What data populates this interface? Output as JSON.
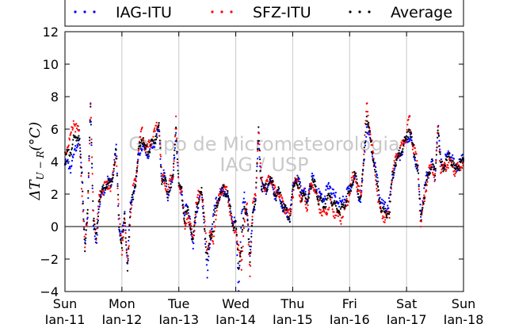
{
  "chart_data": {
    "type": "scatter",
    "title": "",
    "xlabel": "",
    "ylabel": "ΔT",
    "ylabel_subscript": "U − R",
    "ylabel_unit": "(°C)",
    "ylim": [
      -4,
      12
    ],
    "yticks": [
      -4,
      -2,
      0,
      2,
      4,
      6,
      8,
      10,
      12
    ],
    "ytick_labels": [
      "−4",
      "−2",
      "0",
      "2",
      "4",
      "6",
      "8",
      "10",
      "12"
    ],
    "xlim": [
      0,
      7
    ],
    "x_unit": "days since Sun Jan-11",
    "xticks": [
      {
        "x": 0,
        "day": "Sun",
        "date": "Jan-11"
      },
      {
        "x": 1,
        "day": "Mon",
        "date": "Jan-12"
      },
      {
        "x": 2,
        "day": "Tue",
        "date": "Jan-13"
      },
      {
        "x": 3,
        "day": "Wed",
        "date": "Jan-14"
      },
      {
        "x": 4,
        "day": "Thu",
        "date": "Jan-15"
      },
      {
        "x": 5,
        "day": "Fri",
        "date": "Jan-16"
      },
      {
        "x": 6,
        "day": "Sat",
        "date": "Jan-17"
      },
      {
        "x": 7,
        "day": "Sun",
        "date": "Jan-18"
      }
    ],
    "grid": "vertical",
    "zero_line": true,
    "legend_position": "top (above plot)",
    "watermark": [
      "Grupo de Micrometeorologia",
      "IAG / USP"
    ],
    "series": [
      {
        "name": "IAG-ITU",
        "color": "#0000ff",
        "marker": "dot",
        "x": [
          0,
          0.05,
          0.1,
          0.15,
          0.2,
          0.25,
          0.3,
          0.35,
          0.4,
          0.45,
          0.5,
          0.55,
          0.6,
          0.65,
          0.7,
          0.75,
          0.8,
          0.85,
          0.9,
          0.95,
          1,
          1.05,
          1.1,
          1.15,
          1.2,
          1.25,
          1.3,
          1.35,
          1.4,
          1.45,
          1.5,
          1.55,
          1.6,
          1.65,
          1.7,
          1.75,
          1.8,
          1.85,
          1.9,
          1.95,
          2,
          2.05,
          2.1,
          2.15,
          2.2,
          2.25,
          2.3,
          2.35,
          2.4,
          2.45,
          2.5,
          2.55,
          2.6,
          2.65,
          2.7,
          2.75,
          2.8,
          2.85,
          2.9,
          2.95,
          3,
          3.05,
          3.1,
          3.15,
          3.2,
          3.25,
          3.3,
          3.35,
          3.4,
          3.45,
          3.5,
          3.55,
          3.6,
          3.65,
          3.7,
          3.75,
          3.8,
          3.85,
          3.9,
          3.95,
          4,
          4.05,
          4.1,
          4.15,
          4.2,
          4.25,
          4.3,
          4.35,
          4.4,
          4.45,
          4.5,
          4.55,
          4.6,
          4.65,
          4.7,
          4.75,
          4.8,
          4.85,
          4.9,
          4.95,
          5,
          5.05,
          5.1,
          5.15,
          5.2,
          5.25,
          5.3,
          5.35,
          5.4,
          5.45,
          5.5,
          5.55,
          5.6,
          5.65,
          5.7,
          5.75,
          5.8,
          5.85,
          5.9,
          5.95,
          6,
          6.05,
          6.1,
          6.15,
          6.2,
          6.25,
          6.3,
          6.35,
          6.4,
          6.45,
          6.5,
          6.55,
          6.6,
          6.65,
          6.7,
          6.75,
          6.8,
          6.85,
          6.9,
          6.95,
          7
        ],
        "y": [
          3.8,
          3.9,
          3.6,
          4.2,
          5.0,
          5.6,
          3.0,
          -0.8,
          0.5,
          7.8,
          0.0,
          -1.2,
          1.5,
          2.0,
          2.4,
          2.8,
          2.6,
          3.5,
          4.8,
          0.0,
          -0.8,
          0.8,
          -2.2,
          1.2,
          2.0,
          2.8,
          4.5,
          5.0,
          4.6,
          4.4,
          4.7,
          4.9,
          5.5,
          5.9,
          3.0,
          3.2,
          1.8,
          2.5,
          2.8,
          6.0,
          2.3,
          2.2,
          0.8,
          1.2,
          0.5,
          -1.5,
          0.8,
          1.6,
          2.0,
          0.0,
          -3.2,
          -0.8,
          0.5,
          1.4,
          1.8,
          2.0,
          2.2,
          1.9,
          1.2,
          0.4,
          0.2,
          -3.8,
          0.5,
          1.8,
          1.0,
          -2.0,
          1.0,
          1.5,
          5.5,
          2.5,
          2.2,
          2.4,
          2.8,
          2.5,
          1.8,
          2.0,
          1.5,
          1.0,
          0.8,
          0.5,
          2.3,
          3.0,
          2.8,
          2.2,
          2.5,
          1.2,
          2.8,
          3.0,
          2.6,
          2.0,
          1.9,
          1.8,
          2.2,
          2.6,
          2.0,
          1.8,
          1.6,
          1.4,
          1.6,
          2.0,
          2.3,
          2.8,
          3.0,
          2.0,
          1.8,
          3.8,
          6.2,
          5.5,
          4.5,
          3.6,
          2.5,
          1.6,
          1.2,
          1.2,
          1.5,
          3.0,
          3.8,
          4.2,
          4.5,
          5.0,
          5.3,
          5.6,
          5.0,
          4.2,
          3.2,
          0.8,
          2.0,
          3.0,
          3.5,
          4.0,
          3.2,
          6.5,
          3.8,
          3.9,
          4.2,
          4.6,
          4.3,
          3.6,
          3.8,
          4.0,
          4.2
        ]
      },
      {
        "name": "SFZ-ITU",
        "color": "#ff0000",
        "marker": "dot",
        "x": [
          0,
          0.05,
          0.1,
          0.15,
          0.2,
          0.25,
          0.3,
          0.35,
          0.4,
          0.45,
          0.5,
          0.55,
          0.6,
          0.65,
          0.7,
          0.75,
          0.8,
          0.85,
          0.9,
          0.95,
          1,
          1.05,
          1.1,
          1.15,
          1.2,
          1.25,
          1.3,
          1.35,
          1.4,
          1.45,
          1.5,
          1.55,
          1.6,
          1.65,
          1.7,
          1.75,
          1.8,
          1.85,
          1.9,
          1.95,
          2,
          2.05,
          2.1,
          2.15,
          2.2,
          2.25,
          2.3,
          2.35,
          2.4,
          2.45,
          2.5,
          2.55,
          2.6,
          2.65,
          2.7,
          2.75,
          2.8,
          2.85,
          2.9,
          2.95,
          3,
          3.05,
          3.1,
          3.15,
          3.2,
          3.25,
          3.3,
          3.35,
          3.4,
          3.45,
          3.5,
          3.55,
          3.6,
          3.65,
          3.7,
          3.75,
          3.8,
          3.85,
          3.9,
          3.95,
          4,
          4.05,
          4.1,
          4.15,
          4.2,
          4.25,
          4.3,
          4.35,
          4.4,
          4.45,
          4.5,
          4.55,
          4.6,
          4.65,
          4.7,
          4.75,
          4.8,
          4.85,
          4.9,
          4.95,
          5,
          5.05,
          5.1,
          5.15,
          5.2,
          5.25,
          5.3,
          5.35,
          5.4,
          5.45,
          5.5,
          5.55,
          5.6,
          5.65,
          5.7,
          5.75,
          5.8,
          5.85,
          5.9,
          5.95,
          6,
          6.05,
          6.1,
          6.15,
          6.2,
          6.25,
          6.3,
          6.35,
          6.4,
          6.45,
          6.5,
          6.55,
          6.6,
          6.65,
          6.7,
          6.75,
          6.8,
          6.85,
          6.9,
          6.95,
          7
        ],
        "y": [
          4.5,
          5.0,
          5.5,
          6.5,
          6.0,
          5.8,
          2.0,
          -1.5,
          1.0,
          7.5,
          0.8,
          -0.5,
          1.8,
          2.2,
          2.5,
          2.6,
          2.4,
          3.3,
          4.5,
          0.5,
          -1.5,
          0.5,
          -2.5,
          0.8,
          2.5,
          3.0,
          5.0,
          6.0,
          5.0,
          4.8,
          5.2,
          5.6,
          6.0,
          6.4,
          2.8,
          3.0,
          2.0,
          2.8,
          3.2,
          6.5,
          2.5,
          2.3,
          0.0,
          0.8,
          0.0,
          -0.5,
          1.2,
          2.0,
          2.2,
          0.5,
          -1.5,
          -0.5,
          -1.0,
          0.5,
          1.8,
          2.2,
          2.4,
          2.1,
          1.0,
          -0.2,
          0.0,
          -1.5,
          -2.5,
          0.5,
          1.2,
          -2.8,
          1.2,
          2.0,
          6.0,
          2.8,
          2.5,
          2.6,
          3.0,
          2.6,
          2.0,
          2.2,
          1.8,
          1.2,
          1.0,
          0.6,
          2.0,
          2.8,
          2.6,
          1.5,
          2.0,
          1.0,
          2.2,
          2.6,
          2.2,
          1.4,
          1.0,
          0.8,
          1.0,
          1.5,
          1.0,
          0.8,
          0.6,
          0.5,
          0.9,
          1.5,
          2.0,
          3.0,
          3.2,
          2.2,
          2.0,
          4.5,
          7.5,
          6.2,
          4.8,
          3.2,
          1.8,
          0.8,
          0.6,
          0.5,
          0.8,
          3.2,
          4.0,
          4.5,
          4.8,
          5.2,
          5.6,
          6.8,
          5.2,
          4.5,
          3.8,
          0.0,
          1.5,
          2.5,
          3.5,
          3.8,
          3.0,
          6.0,
          3.6,
          3.5,
          3.8,
          4.0,
          3.8,
          3.4,
          3.6,
          3.8,
          4.0
        ]
      },
      {
        "name": "Average",
        "color": "#000000",
        "marker": "dot",
        "x": [
          0,
          0.05,
          0.1,
          0.15,
          0.2,
          0.25,
          0.3,
          0.35,
          0.4,
          0.45,
          0.5,
          0.55,
          0.6,
          0.65,
          0.7,
          0.75,
          0.8,
          0.85,
          0.9,
          0.95,
          1,
          1.05,
          1.1,
          1.15,
          1.2,
          1.25,
          1.3,
          1.35,
          1.4,
          1.45,
          1.5,
          1.55,
          1.6,
          1.65,
          1.7,
          1.75,
          1.8,
          1.85,
          1.9,
          1.95,
          2,
          2.05,
          2.1,
          2.15,
          2.2,
          2.25,
          2.3,
          2.35,
          2.4,
          2.45,
          2.5,
          2.55,
          2.6,
          2.65,
          2.7,
          2.75,
          2.8,
          2.85,
          2.9,
          2.95,
          3,
          3.05,
          3.1,
          3.15,
          3.2,
          3.25,
          3.3,
          3.35,
          3.4,
          3.45,
          3.5,
          3.55,
          3.6,
          3.65,
          3.7,
          3.75,
          3.8,
          3.85,
          3.9,
          3.95,
          4,
          4.05,
          4.1,
          4.15,
          4.2,
          4.25,
          4.3,
          4.35,
          4.4,
          4.45,
          4.5,
          4.55,
          4.6,
          4.65,
          4.7,
          4.75,
          4.8,
          4.85,
          4.9,
          4.95,
          5,
          5.05,
          5.1,
          5.15,
          5.2,
          5.25,
          5.3,
          5.35,
          5.4,
          5.45,
          5.5,
          5.55,
          5.6,
          5.65,
          5.7,
          5.75,
          5.8,
          5.85,
          5.9,
          5.95,
          6,
          6.05,
          6.1,
          6.15,
          6.2,
          6.25,
          6.3,
          6.35,
          6.4,
          6.45,
          6.5,
          6.55,
          6.6,
          6.65,
          6.7,
          6.75,
          6.8,
          6.85,
          6.9,
          6.95,
          7
        ],
        "y": [
          4.2,
          4.5,
          4.6,
          5.3,
          5.5,
          5.7,
          2.5,
          -1.2,
          0.8,
          7.6,
          0.4,
          -0.9,
          1.6,
          2.1,
          2.4,
          2.7,
          2.5,
          3.4,
          4.6,
          0.2,
          -1.2,
          0.6,
          -2.4,
          1.0,
          2.2,
          2.9,
          4.8,
          5.5,
          4.8,
          4.6,
          4.9,
          5.2,
          5.7,
          6.1,
          2.9,
          3.1,
          1.9,
          2.6,
          3.0,
          6.2,
          2.4,
          2.2,
          0.4,
          1.0,
          0.2,
          -1.0,
          1.0,
          1.8,
          2.1,
          0.2,
          -2.3,
          -0.6,
          -0.2,
          1.0,
          1.8,
          2.1,
          2.3,
          2.0,
          1.1,
          0.1,
          0.1,
          -2.6,
          -1.0,
          1.1,
          1.1,
          -2.4,
          1.1,
          1.8,
          5.8,
          2.6,
          2.3,
          2.5,
          2.9,
          2.5,
          1.9,
          2.1,
          1.7,
          1.1,
          0.9,
          0.5,
          2.1,
          2.9,
          2.7,
          1.8,
          2.2,
          1.1,
          2.5,
          2.8,
          2.4,
          1.7,
          1.5,
          1.3,
          1.6,
          2.0,
          1.5,
          1.3,
          1.1,
          1.0,
          1.2,
          1.7,
          2.1,
          2.9,
          3.1,
          2.1,
          1.9,
          4.1,
          6.8,
          5.8,
          4.6,
          3.4,
          2.1,
          1.2,
          0.9,
          0.8,
          1.1,
          3.1,
          3.9,
          4.3,
          4.6,
          5.1,
          5.4,
          6.2,
          5.1,
          4.3,
          3.5,
          0.4,
          1.7,
          2.7,
          3.5,
          3.9,
          3.1,
          6.2,
          3.7,
          3.7,
          4.0,
          4.3,
          4.0,
          3.5,
          3.7,
          3.9,
          4.1
        ]
      }
    ]
  }
}
